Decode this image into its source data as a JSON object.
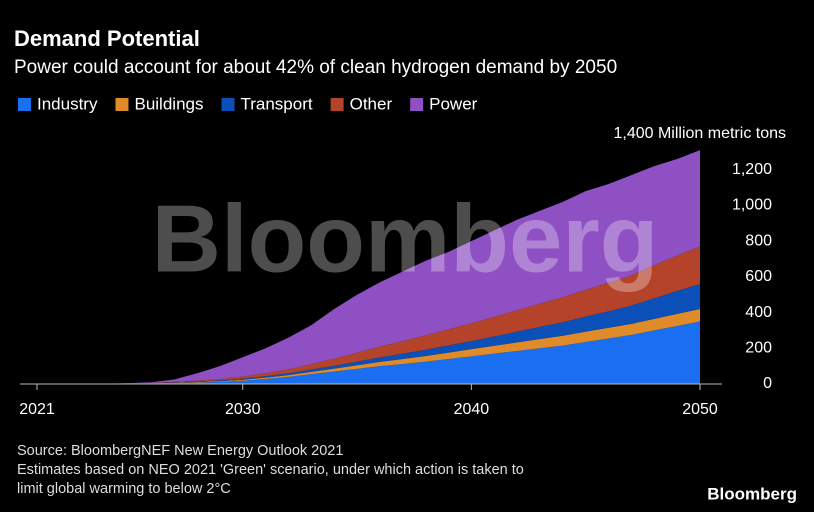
{
  "chart_data": {
    "type": "stacked_area",
    "title": "Demand Potential",
    "subtitle": "Power could account for about 42% of clean hydrogen demand by 2050",
    "x": [
      2021,
      2022,
      2023,
      2024,
      2025,
      2026,
      2027,
      2028,
      2029,
      2030,
      2031,
      2032,
      2033,
      2034,
      2035,
      2036,
      2037,
      2038,
      2039,
      2040,
      2041,
      2042,
      2043,
      2044,
      2045,
      2046,
      2047,
      2048,
      2049,
      2050
    ],
    "series": [
      {
        "name": "Industry",
        "color": "#1a6ff0",
        "values": [
          0,
          0,
          0,
          1,
          2,
          3,
          5,
          8,
          12,
          18,
          28,
          40,
          55,
          70,
          85,
          100,
          112,
          125,
          140,
          155,
          170,
          185,
          200,
          215,
          235,
          255,
          275,
          300,
          325,
          350
        ]
      },
      {
        "name": "Buildings",
        "color": "#e08b2a",
        "values": [
          0,
          0,
          0,
          0,
          1,
          1,
          2,
          3,
          4,
          6,
          8,
          10,
          13,
          16,
          20,
          24,
          28,
          32,
          36,
          40,
          44,
          48,
          52,
          55,
          58,
          60,
          62,
          65,
          68,
          70
        ]
      },
      {
        "name": "Transport",
        "color": "#0b4fb8",
        "values": [
          0,
          0,
          0,
          0,
          0,
          1,
          2,
          3,
          4,
          6,
          8,
          10,
          13,
          16,
          20,
          25,
          30,
          35,
          40,
          45,
          52,
          60,
          68,
          76,
          84,
          92,
          102,
          115,
          128,
          140
        ]
      },
      {
        "name": "Other",
        "color": "#b5432a",
        "values": [
          0,
          0,
          0,
          0,
          1,
          1,
          3,
          5,
          8,
          12,
          16,
          22,
          30,
          40,
          50,
          60,
          70,
          80,
          90,
          100,
          110,
          120,
          130,
          140,
          150,
          160,
          170,
          185,
          198,
          210
        ]
      },
      {
        "name": "Power",
        "color": "#8e50c2",
        "values": [
          0,
          0,
          0,
          0,
          1,
          4,
          13,
          41,
          72,
          108,
          140,
          178,
          219,
          278,
          325,
          361,
          390,
          418,
          434,
          460,
          484,
          507,
          520,
          534,
          553,
          553,
          561,
          555,
          541,
          540
        ]
      }
    ],
    "xlim": [
      2021,
      2050
    ],
    "xticks": [
      2021,
      2030,
      2040,
      2050
    ],
    "ylim": [
      0,
      1400
    ],
    "yticks": [
      0,
      200,
      400,
      600,
      800,
      {
        "value": 1000,
        "label": "1,000"
      },
      {
        "value": 1200,
        "label": "1,200"
      },
      {
        "value": 1400,
        "label": "1,400 Million metric tons"
      }
    ],
    "grid": false,
    "legend": "top-left",
    "watermark": "Bloomberg",
    "source": "Source: BloombergNEF New Energy Outlook 2021",
    "note": "Estimates based on NEO 2021 'Green' scenario, under which action is taken to",
    "note2": "limit global warming to below 2°C",
    "logo": "Bloomberg"
  }
}
